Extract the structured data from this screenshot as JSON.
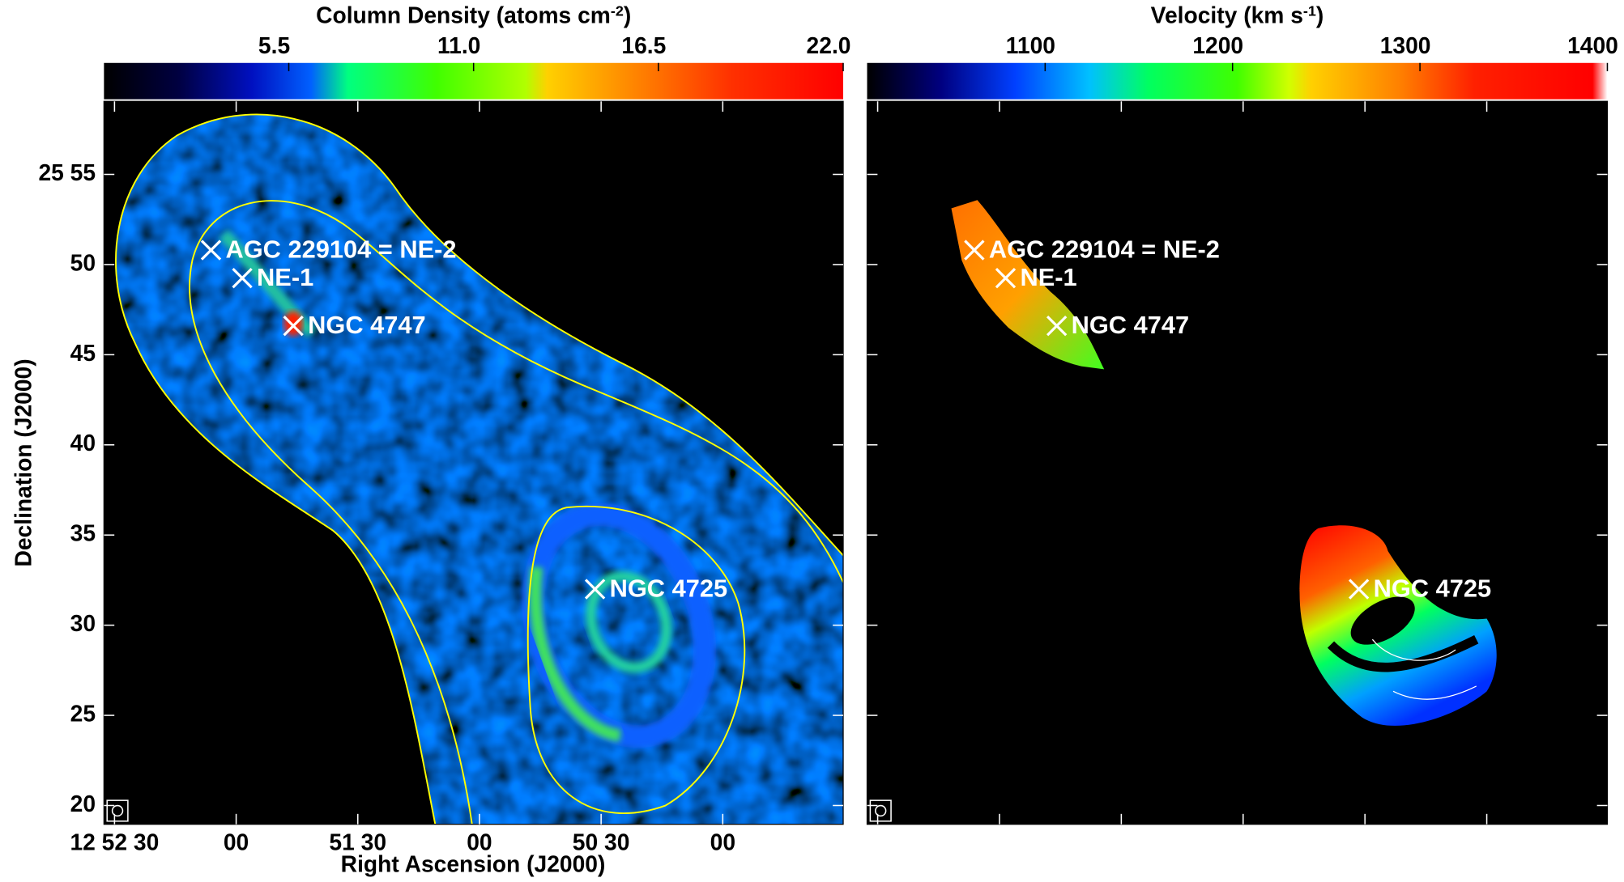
{
  "axes": {
    "xlabel": "Right Ascension (J2000)",
    "ylabel": "Declination (J2000)",
    "xlim": [
      3152.6,
      2970.3
    ],
    "ylim": [
      18.96,
      59.05
    ],
    "xticks": [
      {
        "value": 3150,
        "label": "12 52 30"
      },
      {
        "value": 3120,
        "label": "00"
      },
      {
        "value": 3090,
        "label": "51 30"
      },
      {
        "value": 3060,
        "label": "00"
      },
      {
        "value": 3030,
        "label": "50 30"
      },
      {
        "value": 3000,
        "label": "00"
      }
    ],
    "yticks": [
      {
        "value": 55,
        "label": "25 55"
      },
      50,
      45,
      40,
      35,
      30,
      25,
      20
    ]
  },
  "panels": [
    {
      "colorbar": {
        "title": [
          "Column Density (atoms cm",
          "-2",
          ")"
        ],
        "lim": [
          0,
          22
        ],
        "ticks": [
          {
            "value": 5.5,
            "label": "5.5"
          },
          {
            "value": 11,
            "label": "11.0"
          },
          {
            "value": 16.5,
            "label": "16.5"
          },
          {
            "value": 22,
            "label": "22.0"
          }
        ]
      }
    },
    {
      "colorbar": {
        "title": [
          "Velocity (km s",
          "-1",
          ")"
        ],
        "lim": [
          1005,
          1400
        ],
        "ticks": [
          1100,
          1200,
          1300,
          1400
        ]
      }
    }
  ],
  "sources": [
    {
      "name": "AGC 229104 = NE-2",
      "ra": 3126.2,
      "dec": 50.8
    },
    {
      "name": "NE-1",
      "ra": 3118.5,
      "dec": 49.25
    },
    {
      "name": "NGC 4747",
      "ra": 3105.9,
      "dec": 46.6
    },
    {
      "name": "NGC 4725",
      "ra": 3031.5,
      "dec": 32.0
    }
  ]
}
